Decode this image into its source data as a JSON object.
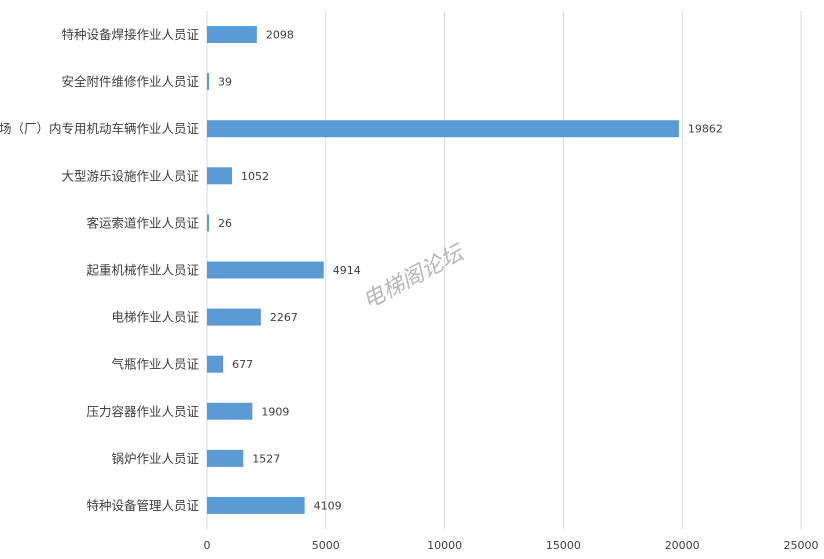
{
  "chart_data": {
    "type": "bar",
    "orientation": "horizontal",
    "categories": [
      "特种设备焊接作业人员证",
      "安全附件维修作业人员证",
      "场（厂）内专用机动车辆作业人员证",
      "大型游乐设施作业人员证",
      "客运索道作业人员证",
      "起重机械作业人员证",
      "电梯作业人员证",
      "气瓶作业人员证",
      "压力容器作业人员证",
      "锅炉作业人员证",
      "特种设备管理人员证"
    ],
    "values": [
      2098,
      39,
      19862,
      1052,
      26,
      4914,
      2267,
      677,
      1909,
      1527,
      4109
    ],
    "xlim": [
      0,
      25000
    ],
    "xticks": [
      0,
      5000,
      10000,
      15000,
      20000,
      25000
    ],
    "grid": "vertical",
    "bar_color": "#5b9bd5",
    "grid_color": "#d9d9d9"
  },
  "watermark": "电梯阁论坛"
}
